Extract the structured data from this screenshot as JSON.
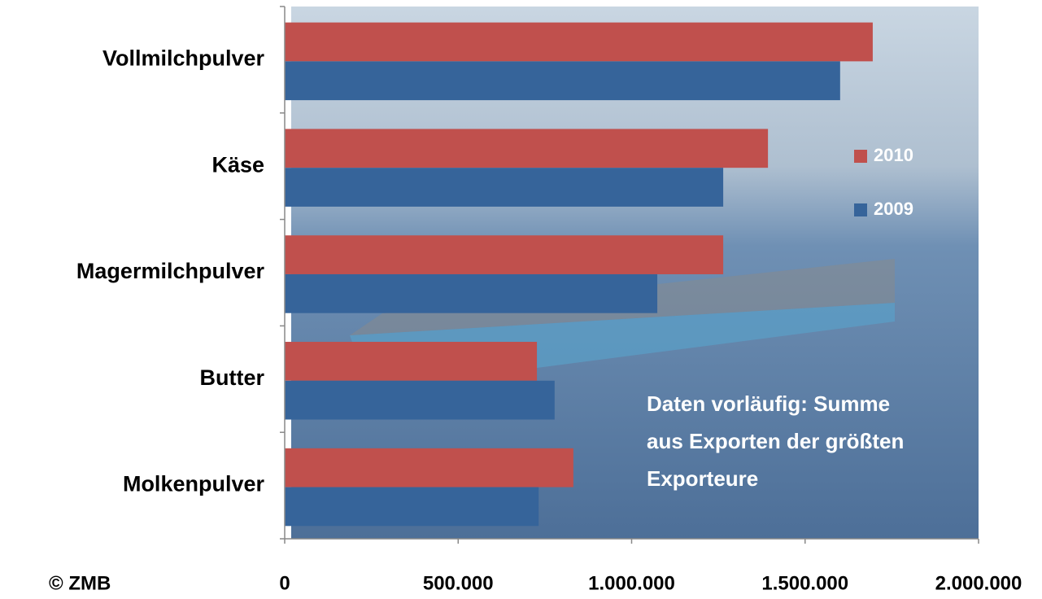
{
  "chart_data": {
    "type": "barh",
    "categories": [
      "Vollmilchpulver",
      "Käse",
      "Magermilchpulver",
      "Butter",
      "Molkenpulver"
    ],
    "series": [
      {
        "name": "2010",
        "color": "#c0504d",
        "values": [
          1695000,
          1393000,
          1264000,
          727000,
          832000
        ]
      },
      {
        "name": "2009",
        "color": "#36649a",
        "values": [
          1601000,
          1264000,
          1074000,
          778000,
          732000
        ]
      }
    ],
    "xlim": [
      0,
      2000000
    ],
    "xticks": [
      0,
      {
        "value": 500000,
        "label": "500.000"
      },
      {
        "value": 1000000,
        "label": "1.000.000"
      },
      {
        "value": 1500000,
        "label": "1.500.000"
      },
      {
        "value": 2000000,
        "label": "2.000.000"
      }
    ],
    "annotation": [
      "Daten vorläufig: Summe",
      "aus Exporten der größten",
      "Exporteure"
    ],
    "source": "© ZMB",
    "legend": "right"
  }
}
